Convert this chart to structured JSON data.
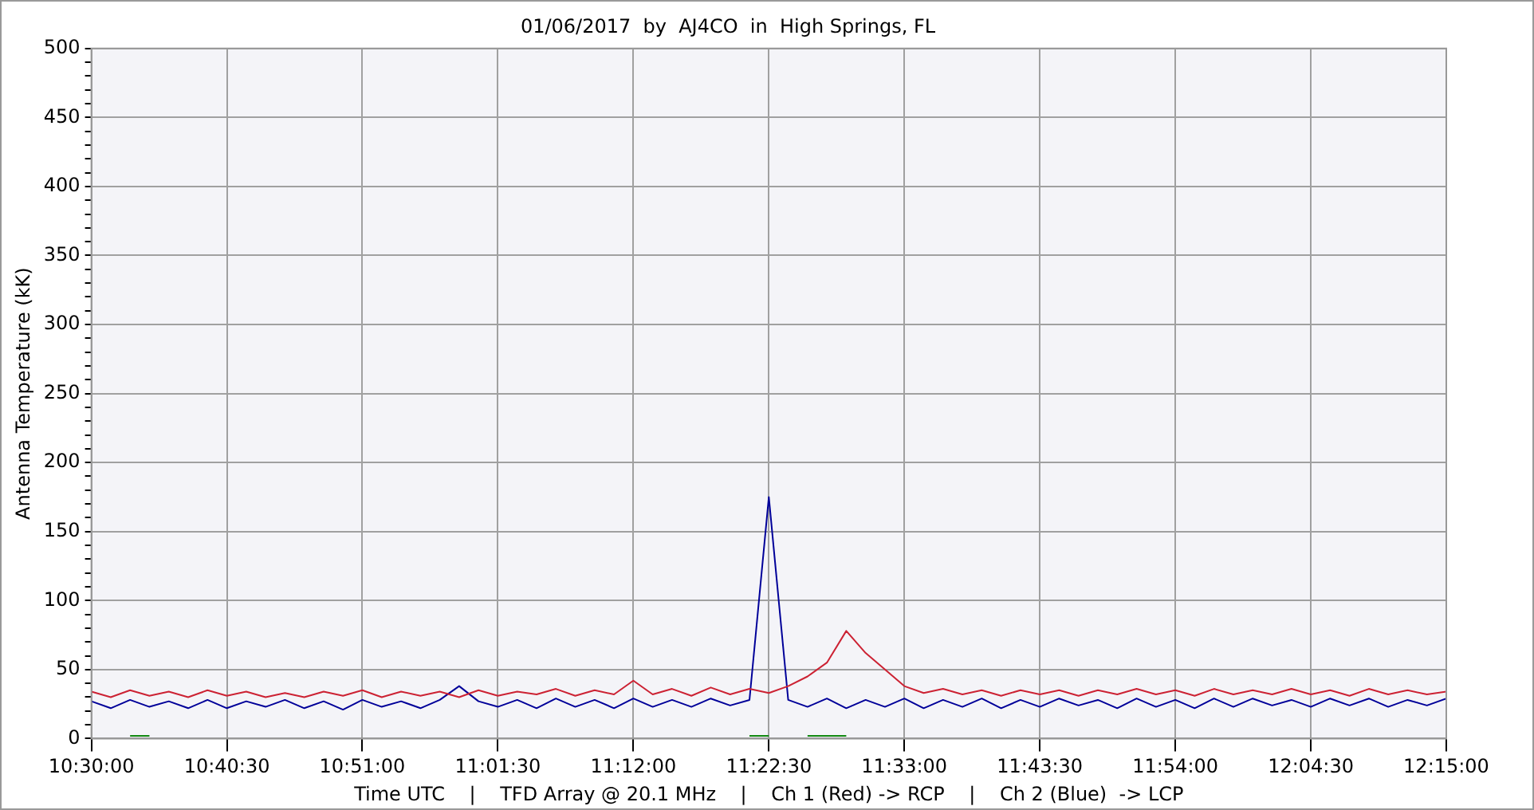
{
  "chart_data": {
    "type": "line",
    "title": "01/06/2017  by  AJ4CO  in  High Springs, FL",
    "xlabel": "Time UTC    |    TFD Array @ 20.1 MHz    |    Ch 1 (Red) -> RCP    |    Ch 2 (Blue)  -> LCP",
    "ylabel": "Antenna Temperature (kK)",
    "x": [
      10.5,
      10.525,
      10.55,
      10.575,
      10.6,
      10.625,
      10.65,
      10.675,
      10.7,
      10.725,
      10.75,
      10.775,
      10.8,
      10.825,
      10.85,
      10.875,
      10.9,
      10.925,
      10.95,
      10.975,
      11.0,
      11.025,
      11.05,
      11.075,
      11.1,
      11.125,
      11.15,
      11.175,
      11.2,
      11.225,
      11.25,
      11.275,
      11.3,
      11.325,
      11.35,
      11.375,
      11.4,
      11.425,
      11.45,
      11.475,
      11.5,
      11.525,
      11.55,
      11.575,
      11.6,
      11.625,
      11.65,
      11.675,
      11.7,
      11.725,
      11.75,
      11.775,
      11.8,
      11.825,
      11.85,
      11.875,
      11.9,
      11.925,
      11.95,
      11.975,
      12.0,
      12.025,
      12.05,
      12.075,
      12.1,
      12.125,
      12.15,
      12.175,
      12.2,
      12.225,
      12.25
    ],
    "series": [
      {
        "color": "#cc2233",
        "values": [
          34,
          30,
          35,
          31,
          34,
          30,
          35,
          31,
          34,
          30,
          33,
          30,
          34,
          31,
          35,
          30,
          34,
          31,
          34,
          30,
          35,
          31,
          34,
          32,
          36,
          31,
          35,
          32,
          42,
          32,
          36,
          31,
          37,
          32,
          36,
          33,
          38,
          45,
          55,
          78,
          62,
          50,
          38,
          33,
          36,
          32,
          35,
          31,
          35,
          32,
          35,
          31,
          35,
          32,
          36,
          32,
          35,
          31,
          36,
          32,
          35,
          32,
          36,
          32,
          35,
          31,
          36,
          32,
          35,
          32,
          34
        ]
      },
      {
        "color": "#000099",
        "values": [
          27,
          22,
          28,
          23,
          27,
          22,
          28,
          22,
          27,
          23,
          28,
          22,
          27,
          21,
          28,
          23,
          27,
          22,
          28,
          38,
          27,
          23,
          28,
          22,
          29,
          23,
          28,
          22,
          29,
          23,
          28,
          23,
          29,
          24,
          28,
          175,
          28,
          23,
          29,
          22,
          28,
          23,
          29,
          22,
          28,
          23,
          29,
          22,
          28,
          23,
          29,
          24,
          28,
          22,
          29,
          23,
          28,
          22,
          29,
          23,
          29,
          24,
          28,
          23,
          29,
          24,
          29,
          23,
          28,
          24,
          29
        ]
      },
      {
        "color": "#118811",
        "values": [
          null,
          null,
          2,
          2,
          null,
          null,
          null,
          null,
          null,
          null,
          null,
          null,
          null,
          null,
          null,
          null,
          null,
          null,
          null,
          null,
          null,
          null,
          null,
          null,
          null,
          null,
          null,
          null,
          null,
          null,
          null,
          null,
          null,
          null,
          2,
          2,
          null,
          2,
          2,
          2,
          null,
          null,
          null,
          null,
          null,
          null,
          null,
          null,
          null,
          null,
          null,
          null,
          null,
          null,
          null,
          null,
          null,
          null,
          null,
          null,
          null,
          null,
          null,
          null,
          null,
          null,
          null,
          null,
          null,
          null,
          null
        ]
      }
    ],
    "xlim": [
      10.5,
      12.25
    ],
    "xticks": [
      {
        "value": 10.5,
        "label": "10:30:00"
      },
      {
        "value": 10.675,
        "label": "10:40:30"
      },
      {
        "value": 10.85,
        "label": "10:51:00"
      },
      {
        "value": 11.025,
        "label": "11:01:30"
      },
      {
        "value": 11.2,
        "label": "11:12:00"
      },
      {
        "value": 11.375,
        "label": "11:22:30"
      },
      {
        "value": 11.55,
        "label": "11:33:00"
      },
      {
        "value": 11.725,
        "label": "11:43:30"
      },
      {
        "value": 11.9,
        "label": "11:54:00"
      },
      {
        "value": 12.075,
        "label": "12:04:30"
      },
      {
        "value": 12.25,
        "label": "12:15:00"
      }
    ],
    "ylim": [
      0,
      500
    ],
    "yticks": [
      0,
      {
        "value": 10,
        "label": null
      },
      {
        "value": 20,
        "label": null
      },
      {
        "value": 30,
        "label": null
      },
      {
        "value": 40,
        "label": null
      },
      50,
      {
        "value": 60,
        "label": null
      },
      {
        "value": 70,
        "label": null
      },
      {
        "value": 80,
        "label": null
      },
      {
        "value": 90,
        "label": null
      },
      100,
      {
        "value": 110,
        "label": null
      },
      {
        "value": 120,
        "label": null
      },
      {
        "value": 130,
        "label": null
      },
      {
        "value": 140,
        "label": null
      },
      150,
      {
        "value": 160,
        "label": null
      },
      {
        "value": 170,
        "label": null
      },
      {
        "value": 180,
        "label": null
      },
      {
        "value": 190,
        "label": null
      },
      200,
      {
        "value": 210,
        "label": null
      },
      {
        "value": 220,
        "label": null
      },
      {
        "value": 230,
        "label": null
      },
      {
        "value": 240,
        "label": null
      },
      250,
      {
        "value": 260,
        "label": null
      },
      {
        "value": 270,
        "label": null
      },
      {
        "value": 280,
        "label": null
      },
      {
        "value": 290,
        "label": null
      },
      300,
      {
        "value": 310,
        "label": null
      },
      {
        "value": 320,
        "label": null
      },
      {
        "value": 330,
        "label": null
      },
      {
        "value": 340,
        "label": null
      },
      350,
      {
        "value": 360,
        "label": null
      },
      {
        "value": 370,
        "label": null
      },
      {
        "value": 380,
        "label": null
      },
      {
        "value": 390,
        "label": null
      },
      400,
      {
        "value": 410,
        "label": null
      },
      {
        "value": 420,
        "label": null
      },
      {
        "value": 430,
        "label": null
      },
      {
        "value": 440,
        "label": null
      },
      450,
      {
        "value": 460,
        "label": null
      },
      {
        "value": 470,
        "label": null
      },
      {
        "value": 480,
        "label": null
      },
      {
        "value": 490,
        "label": null
      },
      500
    ],
    "grid": true,
    "legend": false,
    "marker": "none",
    "line_style": "solid"
  }
}
